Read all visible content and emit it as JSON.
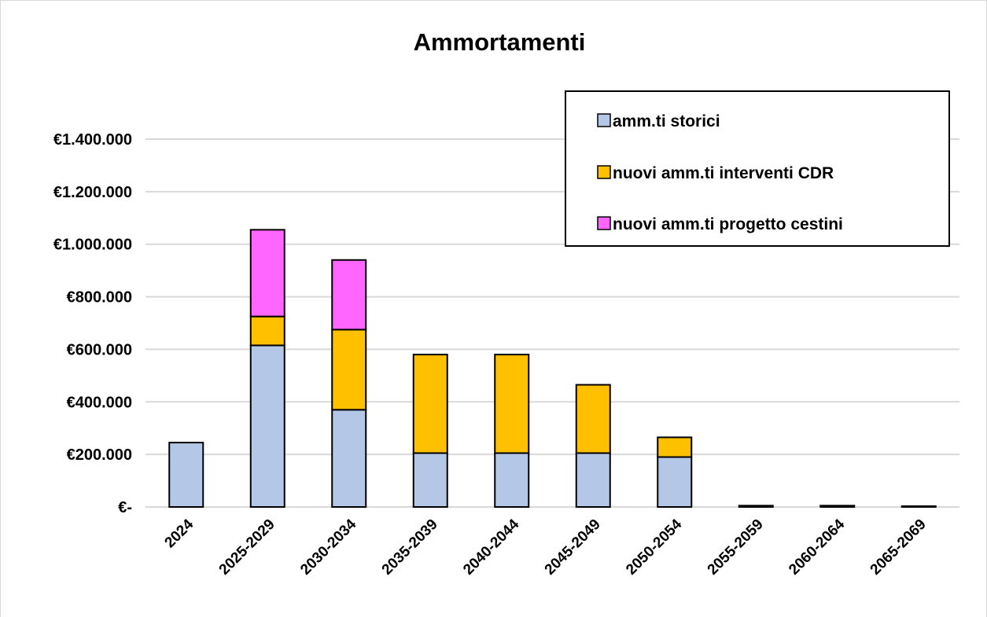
{
  "chart_data": {
    "type": "bar",
    "stacked": true,
    "title": "Ammortamenti",
    "xlabel": "",
    "ylabel": "",
    "categories": [
      "2024",
      "2025-2029",
      "2030-2034",
      "2035-2039",
      "2040-2044",
      "2045-2049",
      "2050-2054",
      "2055-2059",
      "2060-2064",
      "2065-2069"
    ],
    "series": [
      {
        "name": "amm.ti storici",
        "color": "#b4c7e7",
        "values": [
          245000,
          615000,
          370000,
          205000,
          205000,
          205000,
          190000,
          5000,
          5000,
          3000
        ]
      },
      {
        "name": "nuovi amm.ti interventi CDR",
        "color": "#ffc000",
        "values": [
          0,
          110000,
          305000,
          375000,
          375000,
          260000,
          75000,
          0,
          0,
          0
        ]
      },
      {
        "name": "nuovi amm.ti progetto cestini",
        "color": "#ff66ff",
        "values": [
          0,
          330000,
          265000,
          0,
          0,
          0,
          0,
          0,
          0,
          0
        ]
      }
    ],
    "ylim": [
      0,
      1400000
    ],
    "yticks": [
      {
        "value": 0,
        "label": "€-"
      },
      {
        "value": 200000,
        "label": "€200.000"
      },
      {
        "value": 400000,
        "label": "€400.000"
      },
      {
        "value": 600000,
        "label": "€600.000"
      },
      {
        "value": 800000,
        "label": "€800.000"
      },
      {
        "value": 1000000,
        "label": "€1.000.000"
      },
      {
        "value": 1200000,
        "label": "€1.200.000"
      },
      {
        "value": 1400000,
        "label": "€1.400.000"
      }
    ],
    "grid": true,
    "legend_position": "top-right"
  }
}
